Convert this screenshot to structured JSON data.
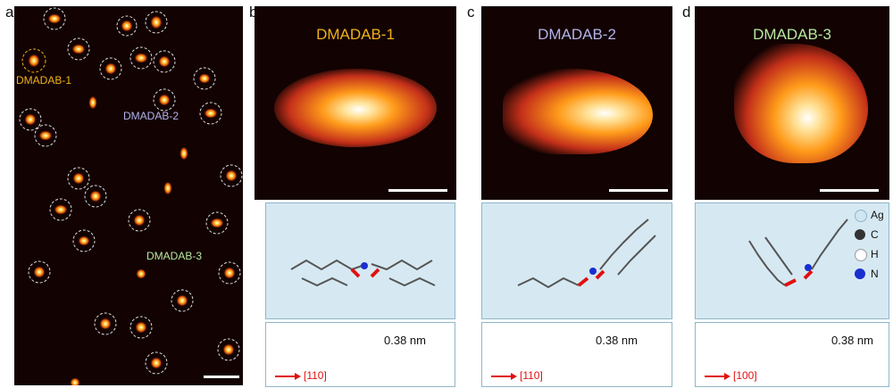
{
  "panels": {
    "a": {
      "label": "a",
      "tags": [
        "DMADAB-1",
        "DMADAB-2",
        "DMADAB-3"
      ]
    },
    "b": {
      "label": "b",
      "title": "DMADAB-1",
      "distance": "0.38 nm",
      "direction": "[110]"
    },
    "c": {
      "label": "c",
      "title": "DMADAB-2",
      "distance": "0.38 nm",
      "direction": "[110]"
    },
    "d": {
      "label": "d",
      "title": "DMADAB-3",
      "distance": "0.38 nm",
      "direction": "[100]"
    }
  },
  "legend": [
    {
      "symbol": "Ag",
      "color": "#cfe6f2"
    },
    {
      "symbol": "C",
      "color": "#333333"
    },
    {
      "symbol": "H",
      "color": "#ffffff"
    },
    {
      "symbol": "N",
      "color": "#1a2fd0"
    }
  ],
  "colors": {
    "tag1": "#f0b21a",
    "tag2": "#b3b3ea",
    "tag3": "#b8e8a0",
    "stm_bg": "#120202",
    "arrow": "#e01010",
    "ag_surface": "#d6e9f2"
  }
}
